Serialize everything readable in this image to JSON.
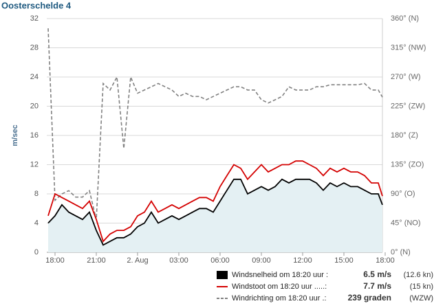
{
  "chart_data": {
    "type": "line",
    "title": "Oosterschelde 4",
    "ylabel": "m/sec",
    "x": [
      17.5,
      18,
      18.5,
      19,
      19.5,
      20,
      20.5,
      21,
      21.5,
      22,
      22.5,
      23,
      23.5,
      24,
      24.5,
      25,
      25.5,
      26,
      26.5,
      27,
      27.5,
      28,
      28.5,
      29,
      29.5,
      30,
      30.5,
      31,
      31.5,
      32,
      32.5,
      33,
      33.5,
      34,
      34.5,
      35,
      35.5,
      36,
      36.5,
      37,
      37.5,
      38,
      38.5,
      39,
      39.5,
      40,
      40.5,
      41,
      41.5,
      41.8
    ],
    "xlim": [
      17.4,
      41.8
    ],
    "xticks": [
      {
        "value": 18,
        "label": "18:00"
      },
      {
        "value": 21,
        "label": "21:00"
      },
      {
        "value": 24,
        "label": "2. Aug"
      },
      {
        "value": 27,
        "label": "03:00"
      },
      {
        "value": 30,
        "label": "06:00"
      },
      {
        "value": 33,
        "label": "09:00"
      },
      {
        "value": 36,
        "label": "12:00"
      },
      {
        "value": 39,
        "label": "15:00"
      },
      {
        "value": 42,
        "label": "18:00"
      }
    ],
    "ylim": [
      0,
      32
    ],
    "yticks": [
      0,
      4,
      8,
      12,
      16,
      20,
      24,
      28,
      32
    ],
    "y2lim": [
      0,
      360
    ],
    "y2ticks": [
      {
        "value": 0,
        "label": "0° (N)"
      },
      {
        "value": 45,
        "label": "45° (NO)"
      },
      {
        "value": 90,
        "label": "90° (O)"
      },
      {
        "value": 135,
        "label": "135° (ZO)"
      },
      {
        "value": 180,
        "label": "180° (Z)"
      },
      {
        "value": 225,
        "label": "225° (ZW)"
      },
      {
        "value": 270,
        "label": "270° (W)"
      },
      {
        "value": 315,
        "label": "315° (NW)"
      },
      {
        "value": 360,
        "label": "360° (N)"
      }
    ],
    "grid": true,
    "legend": "bottom-right",
    "series": [
      {
        "name": "Windsnelheid om 18:20 uur :",
        "current": "6.5 m/s",
        "current_alt": "(12.6 kn)",
        "color": "#000000",
        "style": "solid",
        "area": "#e4f0f3",
        "values": [
          4,
          5,
          6.5,
          5.5,
          5,
          4.5,
          5.5,
          3,
          1,
          1.5,
          2,
          2,
          2.5,
          3.5,
          4,
          5.5,
          4,
          4.5,
          5,
          4.5,
          5,
          5.5,
          6,
          6,
          5.5,
          7,
          8.5,
          10,
          10,
          8,
          8.5,
          9,
          8.5,
          9,
          10,
          9.5,
          10,
          10,
          10,
          9.5,
          8.5,
          9.5,
          9,
          9.5,
          9,
          9,
          8.5,
          8,
          8,
          6.5
        ]
      },
      {
        "name": "Windstoot om 18:20 uur .....:",
        "current": "7.7 m/s",
        "current_alt": "(15 kn)",
        "color": "#d40000",
        "style": "solid",
        "values": [
          5,
          8,
          7.5,
          7,
          6.5,
          6,
          7,
          4.5,
          1.5,
          2.5,
          3,
          3,
          3.5,
          5,
          5.5,
          7,
          5.5,
          6,
          6.5,
          6,
          6.5,
          7,
          7.5,
          7.5,
          7,
          9,
          10.5,
          12,
          11.5,
          10,
          11,
          12,
          11,
          11.5,
          12,
          12,
          12.5,
          12.5,
          12,
          11.5,
          10.5,
          11.5,
          11,
          11.5,
          11,
          11,
          10.5,
          9.5,
          9.5,
          7.7
        ]
      },
      {
        "name": "Windrichting om 18:20 uur .:",
        "current": "239 graden",
        "current_alt": "(WZW)",
        "color": "#808080",
        "style": "dashed",
        "axis": "y2",
        "values": [
          345,
          80,
          90,
          95,
          85,
          85,
          95,
          50,
          260,
          250,
          270,
          160,
          270,
          245,
          250,
          255,
          260,
          255,
          250,
          240,
          245,
          240,
          240,
          235,
          240,
          245,
          250,
          255,
          255,
          250,
          250,
          235,
          230,
          235,
          240,
          255,
          250,
          250,
          250,
          255,
          255,
          258,
          258,
          258,
          258,
          258,
          260,
          250,
          250,
          239
        ]
      }
    ]
  }
}
